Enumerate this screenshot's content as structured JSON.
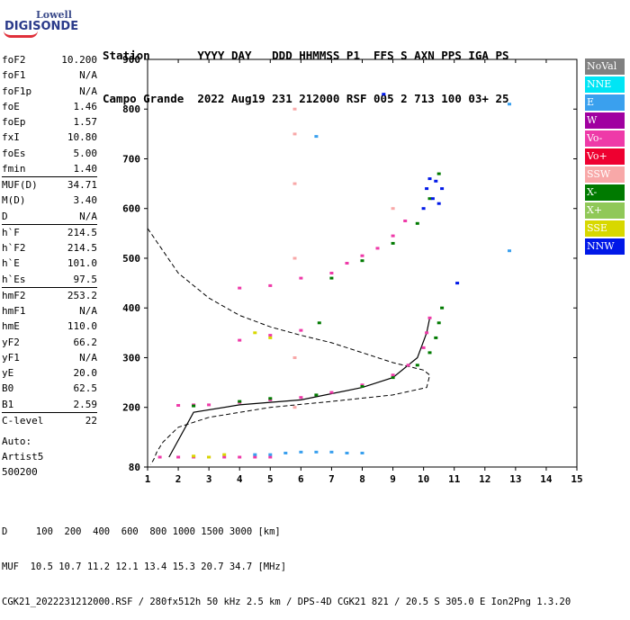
{
  "logo": {
    "line1": "Lowell",
    "line2": "DIGISONDE"
  },
  "header": {
    "labels_line": "Station       YYYY DAY   DDD HHMMSS P1  FFS S AXN PPS IGA PS",
    "values_line": "Campo Grande  2022 Aug19 231 212000 RSF 005 2 713 100 03+ 25"
  },
  "params": [
    {
      "name": "foF2",
      "value": "10.200"
    },
    {
      "name": "foF1",
      "value": "N/A"
    },
    {
      "name": "foF1p",
      "value": "N/A"
    },
    {
      "name": "foE",
      "value": "1.46"
    },
    {
      "name": "foEp",
      "value": "1.57"
    },
    {
      "name": "fxI",
      "value": "10.80"
    },
    {
      "name": "foEs",
      "value": "5.00"
    },
    {
      "name": "fmin",
      "value": "1.40"
    },
    {
      "name": "MUF(D)",
      "value": "34.71"
    },
    {
      "name": "M(D)",
      "value": "3.40"
    },
    {
      "name": "D",
      "value": "N/A"
    },
    {
      "name": "h`F",
      "value": "214.5"
    },
    {
      "name": "h`F2",
      "value": "214.5"
    },
    {
      "name": "h`E",
      "value": "101.0"
    },
    {
      "name": "h`Es",
      "value": "97.5"
    },
    {
      "name": "hmF2",
      "value": "253.2"
    },
    {
      "name": "hmF1",
      "value": "N/A"
    },
    {
      "name": "hmE",
      "value": "110.0"
    },
    {
      "name": "yF2",
      "value": "66.2"
    },
    {
      "name": "yF1",
      "value": "N/A"
    },
    {
      "name": "yE",
      "value": "20.0"
    },
    {
      "name": "B0",
      "value": "62.5"
    },
    {
      "name": "B1",
      "value": "2.59"
    },
    {
      "name": "C-level",
      "value": "22"
    }
  ],
  "auto": {
    "line1": "Auto:",
    "line2": "Artist5",
    "line3": "500200"
  },
  "legend": [
    {
      "label": "NoVal",
      "color": "#808080"
    },
    {
      "label": "NNE",
      "color": "#00e5f5"
    },
    {
      "label": "E",
      "color": "#3aa0ee"
    },
    {
      "label": "W",
      "color": "#a000a0"
    },
    {
      "label": "Vo-",
      "color": "#ee3aa8"
    },
    {
      "label": "Vo+",
      "color": "#ee0030"
    },
    {
      "label": "SSW",
      "color": "#f8a8a8"
    },
    {
      "label": "X-",
      "color": "#007a00"
    },
    {
      "label": "X+",
      "color": "#90c858"
    },
    {
      "label": "SSE",
      "color": "#d8d800"
    },
    {
      "label": "NNW",
      "color": "#0018e8"
    }
  ],
  "bottom": {
    "line1": "D     100  200  400  600  800 1000 1500 3000 [km]",
    "line2": "MUF  10.5 10.7 11.2 12.1 13.4 15.3 20.7 34.7 [MHz]",
    "line3": "CGK21_2022231212000.RSF / 280fx512h 50 kHz 2.5 km / DPS-4D CGK21 821 / 20.5 S 305.0 E Ion2Png 1.3.20"
  },
  "chart_data": {
    "type": "scatter",
    "xlim": [
      1,
      15
    ],
    "ylim": [
      80,
      900
    ],
    "xticks": [
      "1",
      "2",
      "3",
      "4",
      "5",
      "6",
      "7",
      "8",
      "9",
      "10",
      "11",
      "12",
      "13",
      "14",
      "15"
    ],
    "yticks": [
      "80",
      "200",
      "300",
      "400",
      "500",
      "600",
      "700",
      "800",
      "900"
    ],
    "series": [
      {
        "name": "Vo-",
        "color": "#ee3aa8",
        "points": [
          [
            1.4,
            100
          ],
          [
            2.0,
            100
          ],
          [
            2.5,
            100
          ],
          [
            3.0,
            100
          ],
          [
            3.5,
            100
          ],
          [
            4.0,
            100
          ],
          [
            4.5,
            100
          ],
          [
            5.0,
            100
          ],
          [
            2.0,
            204
          ],
          [
            2.5,
            205
          ],
          [
            3.0,
            205
          ],
          [
            4.0,
            210
          ],
          [
            5.0,
            215
          ],
          [
            6.0,
            220
          ],
          [
            7.0,
            230
          ],
          [
            8.0,
            245
          ],
          [
            9.0,
            265
          ],
          [
            9.5,
            285
          ],
          [
            10.0,
            320
          ],
          [
            10.1,
            350
          ],
          [
            10.2,
            380
          ],
          [
            4.0,
            440
          ],
          [
            5.0,
            445
          ],
          [
            6.0,
            460
          ],
          [
            7.0,
            470
          ],
          [
            7.5,
            490
          ],
          [
            8.0,
            505
          ],
          [
            8.5,
            520
          ],
          [
            9.0,
            545
          ],
          [
            9.4,
            575
          ],
          [
            4.0,
            335
          ],
          [
            5.0,
            345
          ],
          [
            6.0,
            355
          ]
        ]
      },
      {
        "name": "X-",
        "color": "#007a00",
        "points": [
          [
            2.5,
            203
          ],
          [
            4.0,
            212
          ],
          [
            5.0,
            218
          ],
          [
            6.5,
            225
          ],
          [
            8.0,
            242
          ],
          [
            9.0,
            260
          ],
          [
            9.8,
            285
          ],
          [
            10.2,
            310
          ],
          [
            10.4,
            340
          ],
          [
            10.5,
            370
          ],
          [
            10.6,
            400
          ],
          [
            7.0,
            460
          ],
          [
            8.0,
            495
          ],
          [
            9.0,
            530
          ],
          [
            9.8,
            570
          ],
          [
            10.2,
            620
          ],
          [
            10.5,
            670
          ],
          [
            6.6,
            370
          ]
        ]
      },
      {
        "name": "E",
        "color": "#3aa0ee",
        "points": [
          [
            4.5,
            105
          ],
          [
            5.0,
            105
          ],
          [
            5.5,
            108
          ],
          [
            6.0,
            110
          ],
          [
            6.5,
            110
          ],
          [
            7.0,
            110
          ],
          [
            7.5,
            108
          ],
          [
            8.0,
            108
          ],
          [
            12.8,
            810
          ],
          [
            12.8,
            515
          ],
          [
            6.5,
            745
          ]
        ]
      },
      {
        "name": "NNW",
        "color": "#0018e8",
        "points": [
          [
            10.1,
            640
          ],
          [
            10.2,
            660
          ],
          [
            10.3,
            620
          ],
          [
            10.4,
            655
          ],
          [
            10.5,
            610
          ],
          [
            10.0,
            600
          ],
          [
            10.6,
            640
          ],
          [
            11.1,
            450
          ],
          [
            8.7,
            830
          ]
        ]
      },
      {
        "name": "SSE",
        "color": "#d8d800",
        "points": [
          [
            3.0,
            100
          ],
          [
            3.5,
            105
          ],
          [
            4.5,
            350
          ],
          [
            5.0,
            340
          ],
          [
            2.5,
            102
          ]
        ]
      },
      {
        "name": "SSW",
        "color": "#f8a8a8",
        "points": [
          [
            5.8,
            200
          ],
          [
            5.8,
            300
          ],
          [
            5.8,
            500
          ],
          [
            5.8,
            650
          ],
          [
            5.8,
            750
          ],
          [
            5.8,
            800
          ],
          [
            9.0,
            600
          ]
        ]
      }
    ],
    "trace_curve": [
      [
        1.7,
        100
      ],
      [
        2.5,
        190
      ],
      [
        4,
        205
      ],
      [
        6,
        215
      ],
      [
        8,
        240
      ],
      [
        9,
        260
      ],
      [
        9.8,
        300
      ],
      [
        10.1,
        350
      ],
      [
        10.2,
        380
      ]
    ],
    "profile_curve": [
      [
        1.0,
        560
      ],
      [
        2.0,
        470
      ],
      [
        3.0,
        420
      ],
      [
        4.0,
        385
      ],
      [
        5.0,
        362
      ],
      [
        6.0,
        345
      ],
      [
        7.0,
        330
      ],
      [
        8.0,
        310
      ],
      [
        9.0,
        290
      ],
      [
        10.0,
        275
      ],
      [
        10.2,
        265
      ],
      [
        10.1,
        240
      ],
      [
        9.0,
        225
      ],
      [
        7.0,
        212
      ],
      [
        5.0,
        200
      ],
      [
        3.0,
        180
      ],
      [
        2.0,
        160
      ],
      [
        1.5,
        130
      ],
      [
        1.3,
        110
      ],
      [
        1.2,
        95
      ],
      [
        1.1,
        85
      ]
    ]
  }
}
